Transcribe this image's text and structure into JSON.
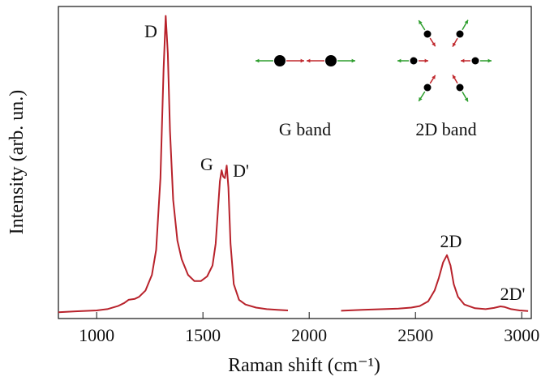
{
  "chart_data": {
    "type": "line",
    "x_label": "Raman shift (cm⁻¹)",
    "y_label": "Intensity (arb. un.)",
    "x": [
      820,
      900,
      1000,
      1050,
      1100,
      1130,
      1150,
      1180,
      1200,
      1230,
      1260,
      1280,
      1300,
      1315,
      1325,
      1335,
      1345,
      1360,
      1380,
      1400,
      1430,
      1460,
      1490,
      1520,
      1545,
      1560,
      1570,
      1580,
      1588,
      1595,
      1603,
      1612,
      1620,
      1630,
      1645,
      1670,
      1700,
      1750,
      1800,
      1850,
      1900,
      2000,
      2150,
      2250,
      2350,
      2420,
      2480,
      2520,
      2560,
      2590,
      2610,
      2630,
      2648,
      2665,
      2680,
      2700,
      2730,
      2780,
      2830,
      2870,
      2900,
      2920,
      2950,
      2990,
      3030
    ],
    "values": [
      2,
      2.3,
      2.6,
      3,
      4,
      5,
      6,
      6.3,
      7,
      9,
      14,
      22,
      45,
      80,
      97,
      85,
      60,
      38,
      25,
      19,
      14,
      12,
      12,
      13.5,
      17,
      24,
      34,
      44,
      47.5,
      45.5,
      45,
      49,
      42,
      24,
      11,
      6,
      4.5,
      3.5,
      3,
      2.8,
      2.6,
      null,
      2.5,
      2.8,
      3,
      3.2,
      3.5,
      4,
      5.5,
      9,
      13,
      18,
      20.3,
      17,
      11,
      7,
      4.5,
      3.3,
      3,
      3.4,
      3.9,
      3.7,
      3,
      2.6,
      2.4
    ],
    "color": "#b8222b",
    "xlim": [
      820,
      3045
    ],
    "ylim": [
      0,
      100
    ],
    "xticks": [
      1000,
      1500,
      2000,
      2500,
      3000
    ],
    "annotations": [
      "D",
      "G",
      "D'",
      "2D",
      "2D'"
    ],
    "mode_labels": [
      "G band",
      "2D band"
    ]
  }
}
